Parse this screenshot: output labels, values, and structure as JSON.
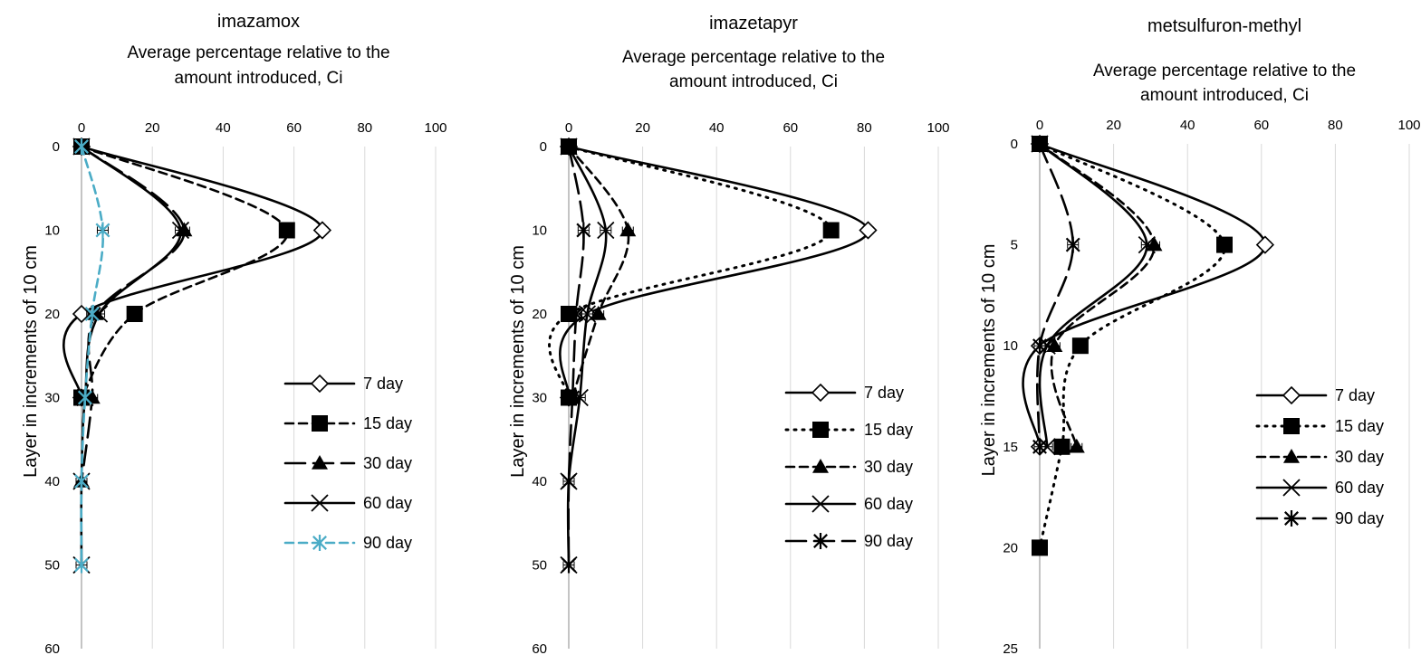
{
  "chart_data": [
    {
      "type": "line",
      "title": "imazamox",
      "subtitle_lines": [
        "Average percentage relative to the",
        "amount introduced, Ci"
      ],
      "ylabel": "Layer in increments of 10 cm",
      "xlim": [
        0,
        100
      ],
      "x_ticks": [
        "0",
        "20",
        "40",
        "60",
        "80",
        "100"
      ],
      "ylim": [
        0,
        60
      ],
      "y_ticks": [
        "0",
        "10",
        "20",
        "30",
        "40",
        "50",
        "60"
      ],
      "y_inverted": true,
      "grid": "vertical",
      "legend_position": "right",
      "series": [
        {
          "name": "7 day",
          "line": "solid",
          "color": "#000000",
          "marker": "diamond-open",
          "points": [
            [
              0,
              0
            ],
            [
              68,
              10
            ],
            [
              0,
              20
            ],
            [
              0,
              30
            ]
          ]
        },
        {
          "name": "15 day",
          "line": "dashed",
          "color": "#000000",
          "marker": "square",
          "points": [
            [
              0,
              0
            ],
            [
              58,
              10
            ],
            [
              15,
              20
            ],
            [
              0,
              30
            ]
          ]
        },
        {
          "name": "30 day",
          "line": "longdash",
          "color": "#000000",
          "marker": "triangle",
          "points": [
            [
              0,
              0
            ],
            [
              29,
              10
            ],
            [
              4,
              20
            ],
            [
              3,
              30
            ],
            [
              0,
              40
            ]
          ]
        },
        {
          "name": "60 day",
          "line": "solid",
          "color": "#000000",
          "marker": "x",
          "points": [
            [
              0,
              0
            ],
            [
              28,
              10
            ],
            [
              5,
              20
            ],
            [
              1,
              30
            ],
            [
              0,
              40
            ],
            [
              0,
              50
            ]
          ]
        },
        {
          "name": "90 day",
          "line": "dashed",
          "color": "#4bacc6",
          "marker": "star",
          "points": [
            [
              0,
              0
            ],
            [
              6,
              10
            ],
            [
              3,
              20
            ],
            [
              1,
              30
            ],
            [
              0,
              40
            ],
            [
              0,
              50
            ]
          ]
        }
      ]
    },
    {
      "type": "line",
      "title": "imazetapyr",
      "subtitle_lines": [
        "Average percentage relative to the",
        "amount introduced, Ci"
      ],
      "ylabel": "Layer in increments of 10 cm",
      "xlim": [
        0,
        100
      ],
      "x_ticks": [
        "0",
        "20",
        "40",
        "60",
        "80",
        "100"
      ],
      "ylim": [
        0,
        60
      ],
      "y_ticks": [
        "0",
        "10",
        "20",
        "30",
        "40",
        "50",
        "60"
      ],
      "y_inverted": true,
      "grid": "vertical",
      "legend_position": "right",
      "series": [
        {
          "name": "7 day",
          "line": "solid",
          "color": "#000000",
          "marker": "diamond-open",
          "points": [
            [
              0,
              0
            ],
            [
              81,
              10
            ],
            [
              5,
              20
            ],
            [
              0,
              30
            ]
          ]
        },
        {
          "name": "15 day",
          "line": "dotted",
          "color": "#000000",
          "marker": "square",
          "points": [
            [
              0,
              0
            ],
            [
              71,
              10
            ],
            [
              0,
              20
            ],
            [
              0,
              30
            ]
          ]
        },
        {
          "name": "30 day",
          "line": "dashed",
          "color": "#000000",
          "marker": "triangle",
          "points": [
            [
              0,
              0
            ],
            [
              16,
              10
            ],
            [
              8,
              20
            ],
            [
              1,
              30
            ]
          ]
        },
        {
          "name": "60 day",
          "line": "solid",
          "color": "#000000",
          "marker": "x",
          "points": [
            [
              0,
              0
            ],
            [
              10,
              10
            ],
            [
              5,
              20
            ],
            [
              3,
              30
            ],
            [
              0,
              40
            ],
            [
              0,
              50
            ]
          ]
        },
        {
          "name": "90 day",
          "line": "longdash",
          "color": "#000000",
          "marker": "star",
          "points": [
            [
              0,
              0
            ],
            [
              4,
              10
            ],
            [
              2,
              20
            ],
            [
              1,
              30
            ],
            [
              0,
              40
            ],
            [
              0,
              50
            ]
          ]
        }
      ]
    },
    {
      "type": "line",
      "title": "metsulfuron-methyl",
      "subtitle_lines": [
        "Average percentage relative to the",
        "amount introduced, Ci"
      ],
      "ylabel": "Layer in increments of 10 cm",
      "xlim": [
        0,
        100
      ],
      "x_ticks": [
        "0",
        "20",
        "40",
        "60",
        "80",
        "100"
      ],
      "ylim": [
        0,
        25
      ],
      "y_ticks": [
        "0",
        "5",
        "10",
        "15",
        "20",
        "25"
      ],
      "y_inverted": true,
      "grid": "vertical",
      "legend_position": "right",
      "series": [
        {
          "name": "7 day",
          "line": "solid",
          "color": "#000000",
          "marker": "diamond-open",
          "points": [
            [
              0,
              0
            ],
            [
              61,
              5
            ],
            [
              0,
              10
            ],
            [
              0,
              15
            ]
          ]
        },
        {
          "name": "15 day",
          "line": "dotted",
          "color": "#000000",
          "marker": "square",
          "points": [
            [
              0,
              0
            ],
            [
              50,
              5
            ],
            [
              11,
              10
            ],
            [
              6,
              15
            ],
            [
              0,
              20
            ]
          ]
        },
        {
          "name": "30 day",
          "line": "dashed",
          "color": "#000000",
          "marker": "triangle",
          "points": [
            [
              0,
              0
            ],
            [
              31,
              5
            ],
            [
              4,
              10
            ],
            [
              10,
              15
            ]
          ]
        },
        {
          "name": "60 day",
          "line": "solid",
          "color": "#000000",
          "marker": "x",
          "points": [
            [
              0,
              0
            ],
            [
              29,
              5
            ],
            [
              2,
              10
            ],
            [
              2,
              15
            ]
          ]
        },
        {
          "name": "90 day",
          "line": "longdash",
          "color": "#000000",
          "marker": "star",
          "points": [
            [
              0,
              0
            ],
            [
              9,
              5
            ],
            [
              0,
              10
            ],
            [
              0,
              15
            ]
          ]
        }
      ]
    }
  ]
}
